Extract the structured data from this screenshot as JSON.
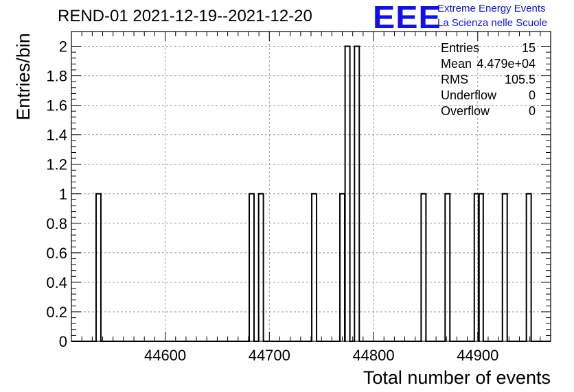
{
  "title": "REND-01 2021-12-19--2021-12-20",
  "logo": {
    "text": "EEE",
    "line1": "Extreme Energy Events",
    "line2": "La Scienza nelle Scuole",
    "color": "#1010f0"
  },
  "stats": [
    {
      "label": "Entries",
      "value": "15"
    },
    {
      "label": "Mean",
      "value": "4.479e+04"
    },
    {
      "label": "RMS",
      "value": "105.5"
    },
    {
      "label": "Underflow",
      "value": "0"
    },
    {
      "label": "Overflow",
      "value": "0"
    }
  ],
  "chart_data": {
    "type": "bar",
    "histogram": true,
    "title": "REND-01 2021-12-19--2021-12-20",
    "xlabel": "Total number of events",
    "ylabel": "Entries/bin",
    "xlim": [
      44510,
      44970
    ],
    "ylim": [
      0,
      2.1
    ],
    "grid": true,
    "bin_width": 4.6,
    "bins": [
      {
        "x": 44536,
        "value": 1
      },
      {
        "x": 44683,
        "value": 1
      },
      {
        "x": 44692,
        "value": 1
      },
      {
        "x": 44743,
        "value": 1
      },
      {
        "x": 44770,
        "value": 1
      },
      {
        "x": 44775,
        "value": 2
      },
      {
        "x": 44784,
        "value": 2
      },
      {
        "x": 44848,
        "value": 1
      },
      {
        "x": 44871,
        "value": 1
      },
      {
        "x": 44899,
        "value": 1
      },
      {
        "x": 44903,
        "value": 1
      },
      {
        "x": 44926,
        "value": 1
      },
      {
        "x": 44949,
        "value": 1
      }
    ],
    "xticks": [
      "44600",
      "44700",
      "44800",
      "44900"
    ],
    "xtick_values": [
      44600,
      44700,
      44800,
      44900
    ],
    "yticks": [
      "0",
      "0.2",
      "0.4",
      "0.6",
      "0.8",
      "1",
      "1.2",
      "1.4",
      "1.6",
      "1.8",
      "2"
    ],
    "ytick_values": [
      0,
      0.2,
      0.4,
      0.6,
      0.8,
      1,
      1.2,
      1.4,
      1.6,
      1.8,
      2
    ]
  }
}
